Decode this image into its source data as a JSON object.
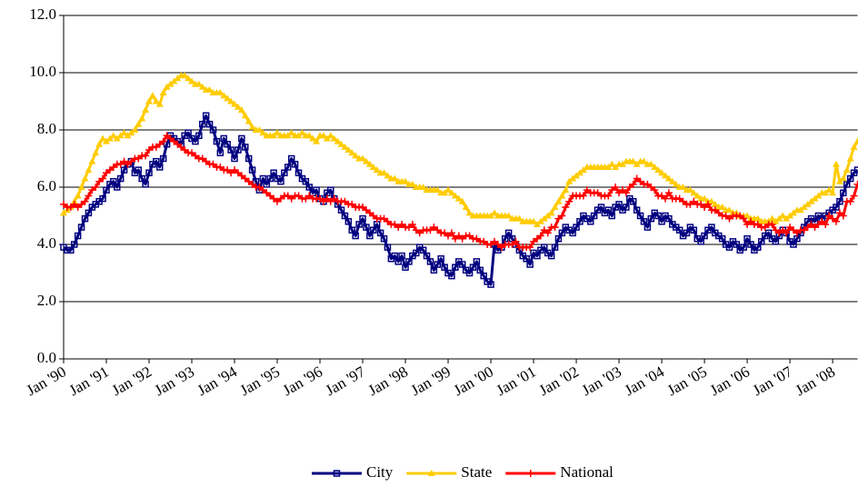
{
  "chart_data": {
    "type": "line",
    "categories": [
      "Jan '90",
      null,
      null,
      null,
      null,
      null,
      null,
      null,
      null,
      null,
      null,
      null,
      "Jan '91",
      null,
      null,
      null,
      null,
      null,
      null,
      null,
      null,
      null,
      null,
      null,
      "Jan '92",
      null,
      null,
      null,
      null,
      null,
      null,
      null,
      null,
      null,
      null,
      null,
      "Jan '93",
      null,
      null,
      null,
      null,
      null,
      null,
      null,
      null,
      null,
      null,
      null,
      "Jan '94",
      null,
      null,
      null,
      null,
      null,
      null,
      null,
      null,
      null,
      null,
      null,
      "Jan '95",
      null,
      null,
      null,
      null,
      null,
      null,
      null,
      null,
      null,
      null,
      null,
      "Jan '96",
      null,
      null,
      null,
      null,
      null,
      null,
      null,
      null,
      null,
      null,
      null,
      "Jan '97",
      null,
      null,
      null,
      null,
      null,
      null,
      null,
      null,
      null,
      null,
      null,
      "Jan '98",
      null,
      null,
      null,
      null,
      null,
      null,
      null,
      null,
      null,
      null,
      null,
      "Jan '99",
      null,
      null,
      null,
      null,
      null,
      null,
      null,
      null,
      null,
      null,
      null,
      "Jan '00",
      null,
      null,
      null,
      null,
      null,
      null,
      null,
      null,
      null,
      null,
      null,
      "Jan '01",
      null,
      null,
      null,
      null,
      null,
      null,
      null,
      null,
      null,
      null,
      null,
      "Jan '02",
      null,
      null,
      null,
      null,
      null,
      null,
      null,
      null,
      null,
      null,
      null,
      "Jan '03",
      null,
      null,
      null,
      null,
      null,
      null,
      null,
      null,
      null,
      null,
      null,
      "Jan '04",
      null,
      null,
      null,
      null,
      null,
      null,
      null,
      null,
      null,
      null,
      null,
      "Jan '05",
      null,
      null,
      null,
      null,
      null,
      null,
      null,
      null,
      null,
      null,
      null,
      "Jan '06",
      null,
      null,
      null,
      null,
      null,
      null,
      null,
      null,
      null,
      null,
      null,
      "Jan '07",
      null,
      null,
      null,
      null,
      null,
      null,
      null,
      null,
      null,
      null,
      null,
      "Jan '08",
      null,
      null,
      null,
      null,
      null,
      null,
      null
    ],
    "series": [
      {
        "name": "City",
        "color": "#000080",
        "marker": "square",
        "values": [
          3.9,
          3.8,
          3.8,
          4.0,
          4.3,
          4.6,
          4.9,
          5.1,
          5.3,
          5.4,
          5.5,
          5.6,
          5.9,
          6.1,
          6.2,
          6.0,
          6.3,
          6.6,
          6.8,
          6.9,
          6.5,
          6.6,
          6.3,
          6.1,
          6.5,
          6.8,
          6.9,
          6.7,
          7.0,
          7.5,
          7.8,
          7.7,
          7.6,
          7.5,
          7.8,
          7.9,
          7.7,
          7.6,
          7.8,
          8.2,
          8.5,
          8.2,
          8.0,
          7.6,
          7.2,
          7.7,
          7.5,
          7.3,
          7.0,
          7.3,
          7.7,
          7.4,
          7.0,
          6.6,
          6.2,
          5.9,
          6.3,
          6.1,
          6.3,
          6.5,
          6.3,
          6.2,
          6.5,
          6.7,
          7.0,
          6.8,
          6.5,
          6.3,
          6.2,
          6.0,
          5.8,
          5.9,
          5.6,
          5.5,
          5.8,
          5.9,
          5.6,
          5.4,
          5.2,
          5.0,
          4.8,
          4.5,
          4.3,
          4.7,
          4.9,
          4.6,
          4.3,
          4.5,
          4.7,
          4.4,
          4.2,
          3.9,
          3.5,
          3.6,
          3.4,
          3.6,
          3.2,
          3.4,
          3.6,
          3.7,
          3.9,
          3.8,
          3.6,
          3.4,
          3.1,
          3.3,
          3.5,
          3.2,
          3.0,
          2.9,
          3.2,
          3.4,
          3.3,
          3.1,
          3.0,
          3.2,
          3.4,
          3.1,
          2.9,
          2.7,
          2.6,
          4.0,
          3.8,
          3.9,
          4.2,
          4.4,
          4.2,
          4.0,
          3.8,
          3.6,
          3.5,
          3.3,
          3.7,
          3.6,
          3.8,
          3.9,
          3.7,
          3.6,
          3.9,
          4.2,
          4.4,
          4.6,
          4.5,
          4.4,
          4.6,
          4.8,
          5.0,
          4.9,
          4.8,
          5.0,
          5.2,
          5.3,
          5.1,
          5.2,
          5.0,
          5.3,
          5.4,
          5.2,
          5.3,
          5.6,
          5.5,
          5.2,
          5.0,
          4.8,
          4.6,
          4.9,
          5.1,
          5.0,
          4.8,
          5.0,
          4.9,
          4.7,
          4.6,
          4.5,
          4.3,
          4.4,
          4.6,
          4.5,
          4.2,
          4.1,
          4.3,
          4.5,
          4.6,
          4.4,
          4.3,
          4.2,
          4.0,
          3.9,
          4.1,
          4.0,
          3.8,
          3.9,
          4.2,
          4.0,
          3.8,
          3.9,
          4.1,
          4.3,
          4.4,
          4.2,
          4.1,
          4.3,
          4.5,
          4.4,
          4.1,
          4.0,
          4.2,
          4.4,
          4.6,
          4.8,
          4.9,
          4.8,
          5.0,
          4.9,
          5.0,
          5.1,
          5.2,
          5.3,
          5.5,
          5.8,
          6.1,
          6.3,
          6.5,
          6.6
        ]
      },
      {
        "name": "State",
        "color": "#ffcc00",
        "marker": "triangle",
        "values": [
          5.1,
          5.2,
          5.3,
          5.5,
          5.7,
          6.0,
          6.3,
          6.6,
          6.9,
          7.2,
          7.5,
          7.7,
          7.6,
          7.7,
          7.8,
          7.7,
          7.8,
          7.9,
          7.8,
          7.9,
          8.0,
          8.2,
          8.4,
          8.7,
          9.0,
          9.2,
          9.0,
          8.9,
          9.3,
          9.5,
          9.6,
          9.7,
          9.8,
          9.9,
          9.9,
          9.8,
          9.7,
          9.6,
          9.6,
          9.5,
          9.4,
          9.4,
          9.3,
          9.3,
          9.3,
          9.2,
          9.1,
          9.0,
          8.9,
          8.8,
          8.7,
          8.5,
          8.3,
          8.1,
          8.0,
          8.0,
          7.9,
          7.8,
          7.8,
          7.8,
          7.9,
          7.8,
          7.8,
          7.8,
          7.9,
          7.8,
          7.8,
          7.9,
          7.8,
          7.8,
          7.7,
          7.6,
          7.8,
          7.8,
          7.7,
          7.8,
          7.7,
          7.6,
          7.5,
          7.4,
          7.3,
          7.2,
          7.1,
          7.0,
          7.0,
          6.9,
          6.8,
          6.7,
          6.6,
          6.5,
          6.5,
          6.4,
          6.3,
          6.3,
          6.2,
          6.2,
          6.2,
          6.1,
          6.1,
          6.0,
          6.0,
          6.0,
          5.9,
          5.9,
          5.9,
          5.9,
          5.8,
          5.8,
          5.9,
          5.8,
          5.7,
          5.6,
          5.5,
          5.3,
          5.1,
          5.0,
          5.0,
          5.0,
          5.0,
          5.0,
          5.0,
          5.1,
          5.0,
          5.0,
          5.0,
          5.0,
          4.9,
          4.9,
          4.9,
          4.8,
          4.8,
          4.8,
          4.8,
          4.7,
          4.8,
          4.9,
          5.0,
          5.1,
          5.3,
          5.5,
          5.7,
          5.9,
          6.2,
          6.3,
          6.4,
          6.5,
          6.6,
          6.7,
          6.7,
          6.7,
          6.7,
          6.7,
          6.7,
          6.7,
          6.8,
          6.7,
          6.8,
          6.8,
          6.9,
          6.9,
          6.9,
          6.8,
          6.9,
          6.9,
          6.8,
          6.8,
          6.7,
          6.6,
          6.5,
          6.4,
          6.3,
          6.2,
          6.1,
          6.0,
          6.0,
          5.9,
          5.9,
          5.8,
          5.7,
          5.6,
          5.6,
          5.5,
          5.5,
          5.4,
          5.3,
          5.3,
          5.2,
          5.2,
          5.1,
          5.1,
          5.0,
          5.0,
          5.0,
          4.9,
          4.9,
          4.9,
          4.8,
          4.8,
          4.8,
          4.9,
          4.8,
          4.9,
          5.0,
          4.9,
          5.0,
          5.1,
          5.2,
          5.2,
          5.3,
          5.4,
          5.5,
          5.6,
          5.7,
          5.8,
          5.8,
          5.9,
          5.8,
          6.8,
          6.2,
          6.3,
          6.6,
          7.0,
          7.4,
          7.6
        ]
      },
      {
        "name": "National",
        "color": "#ff0000",
        "marker": "plus",
        "values": [
          5.4,
          5.3,
          5.3,
          5.4,
          5.3,
          5.4,
          5.5,
          5.7,
          5.9,
          6.0,
          6.2,
          6.3,
          6.5,
          6.6,
          6.7,
          6.8,
          6.8,
          6.9,
          6.8,
          6.9,
          7.0,
          7.0,
          7.1,
          7.1,
          7.3,
          7.4,
          7.4,
          7.5,
          7.6,
          7.8,
          7.7,
          7.6,
          7.5,
          7.4,
          7.3,
          7.2,
          7.2,
          7.1,
          7.0,
          7.0,
          6.9,
          6.8,
          6.8,
          6.7,
          6.7,
          6.6,
          6.6,
          6.5,
          6.6,
          6.5,
          6.4,
          6.3,
          6.2,
          6.1,
          6.0,
          6.0,
          5.9,
          5.8,
          5.7,
          5.6,
          5.5,
          5.6,
          5.7,
          5.7,
          5.6,
          5.7,
          5.7,
          5.6,
          5.6,
          5.7,
          5.6,
          5.6,
          5.6,
          5.5,
          5.6,
          5.5,
          5.6,
          5.5,
          5.5,
          5.5,
          5.4,
          5.4,
          5.3,
          5.3,
          5.3,
          5.2,
          5.1,
          5.0,
          4.9,
          4.9,
          4.9,
          4.8,
          4.7,
          4.7,
          4.6,
          4.7,
          4.6,
          4.6,
          4.7,
          4.5,
          4.4,
          4.5,
          4.5,
          4.5,
          4.6,
          4.5,
          4.4,
          4.4,
          4.3,
          4.4,
          4.2,
          4.3,
          4.2,
          4.3,
          4.3,
          4.2,
          4.2,
          4.1,
          4.1,
          4.0,
          4.0,
          4.1,
          4.0,
          3.9,
          4.0,
          4.0,
          4.0,
          4.1,
          3.9,
          3.9,
          3.9,
          3.9,
          4.1,
          4.2,
          4.3,
          4.5,
          4.4,
          4.6,
          4.6,
          4.9,
          5.0,
          5.3,
          5.5,
          5.7,
          5.7,
          5.7,
          5.7,
          5.9,
          5.8,
          5.8,
          5.8,
          5.7,
          5.7,
          5.7,
          5.9,
          6.0,
          5.8,
          5.9,
          5.8,
          6.0,
          6.1,
          6.3,
          6.2,
          6.1,
          6.1,
          6.0,
          5.9,
          5.7,
          5.7,
          5.6,
          5.8,
          5.6,
          5.6,
          5.6,
          5.5,
          5.4,
          5.4,
          5.5,
          5.4,
          5.4,
          5.3,
          5.4,
          5.2,
          5.2,
          5.1,
          5.0,
          5.0,
          4.9,
          5.0,
          5.0,
          5.0,
          4.9,
          4.7,
          4.8,
          4.7,
          4.7,
          4.6,
          4.6,
          4.7,
          4.7,
          4.5,
          4.4,
          4.5,
          4.4,
          4.6,
          4.5,
          4.4,
          4.5,
          4.5,
          4.6,
          4.7,
          4.6,
          4.7,
          4.8,
          4.7,
          5.0,
          4.9,
          4.8,
          5.1,
          5.0,
          5.5,
          5.5,
          5.7,
          6.1
        ]
      }
    ],
    "ylim": [
      0,
      12
    ],
    "yticks": [
      {
        "value": 0,
        "label": "0.0"
      },
      {
        "value": 2,
        "label": "2.0"
      },
      {
        "value": 4,
        "label": "4.0"
      },
      {
        "value": 6,
        "label": "6.0"
      },
      {
        "value": 8,
        "label": "8.0"
      },
      {
        "value": 10,
        "label": "10.0"
      },
      {
        "value": 12,
        "label": "12.0"
      }
    ],
    "grid": true,
    "legend": "bottom"
  }
}
